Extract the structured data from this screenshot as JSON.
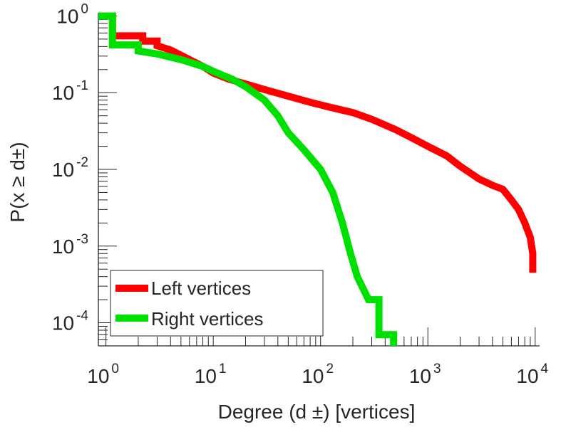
{
  "chart_data": {
    "type": "line",
    "title": "",
    "xlabel": "Degree (d ±) [vertices]",
    "ylabel": "P(x ≥ d±)",
    "xscale": "log",
    "yscale": "log",
    "xlim": [
      0.85,
      11000
    ],
    "ylim": [
      5e-05,
      1.1
    ],
    "grid": false,
    "legend_position": "bottom-left",
    "x_ticks": [
      {
        "base": "10",
        "exp": "0",
        "value": 1
      },
      {
        "base": "10",
        "exp": "1",
        "value": 10
      },
      {
        "base": "10",
        "exp": "2",
        "value": 100
      },
      {
        "base": "10",
        "exp": "3",
        "value": 1000
      },
      {
        "base": "10",
        "exp": "4",
        "value": 10000
      }
    ],
    "y_ticks": [
      {
        "base": "10",
        "exp": "0",
        "value": 1
      },
      {
        "base": "10",
        "exp": "-1",
        "value": 0.1
      },
      {
        "base": "10",
        "exp": "-2",
        "value": 0.01
      },
      {
        "base": "10",
        "exp": "-3",
        "value": 0.001
      },
      {
        "base": "10",
        "exp": "-4",
        "value": 0.0001
      }
    ],
    "series": [
      {
        "name": "Left vertices",
        "color": "#ff0000",
        "points": [
          [
            0.85,
            1.0
          ],
          [
            1.0,
            1.0
          ],
          [
            1.15,
            1.0
          ],
          [
            1.15,
            0.55
          ],
          [
            2.2,
            0.55
          ],
          [
            2.2,
            0.47
          ],
          [
            3.0,
            0.47
          ],
          [
            3.0,
            0.41
          ],
          [
            4.0,
            0.36
          ],
          [
            6.0,
            0.27
          ],
          [
            8.0,
            0.22
          ],
          [
            10,
            0.18
          ],
          [
            14,
            0.15
          ],
          [
            20,
            0.13
          ],
          [
            30,
            0.11
          ],
          [
            50,
            0.09
          ],
          [
            80,
            0.075
          ],
          [
            120,
            0.065
          ],
          [
            200,
            0.055
          ],
          [
            300,
            0.045
          ],
          [
            500,
            0.033
          ],
          [
            700,
            0.026
          ],
          [
            1000,
            0.02
          ],
          [
            1500,
            0.015
          ],
          [
            2000,
            0.011
          ],
          [
            3000,
            0.0075
          ],
          [
            4000,
            0.0062
          ],
          [
            5000,
            0.0055
          ],
          [
            6000,
            0.004
          ],
          [
            7000,
            0.003
          ],
          [
            8000,
            0.002
          ],
          [
            9000,
            0.0013
          ],
          [
            9500,
            0.0008
          ],
          [
            9500,
            0.00045
          ]
        ]
      },
      {
        "name": "Right vertices",
        "color": "#00e000",
        "points": [
          [
            0.85,
            1.0
          ],
          [
            1.0,
            1.0
          ],
          [
            1.15,
            1.0
          ],
          [
            1.15,
            0.42
          ],
          [
            2.0,
            0.42
          ],
          [
            2.0,
            0.35
          ],
          [
            3.0,
            0.32
          ],
          [
            5.0,
            0.27
          ],
          [
            8.0,
            0.22
          ],
          [
            10,
            0.19
          ],
          [
            15,
            0.15
          ],
          [
            20,
            0.12
          ],
          [
            30,
            0.08
          ],
          [
            40,
            0.05
          ],
          [
            50,
            0.03
          ],
          [
            70,
            0.018
          ],
          [
            100,
            0.01
          ],
          [
            130,
            0.005
          ],
          [
            160,
            0.002
          ],
          [
            190,
            0.0008
          ],
          [
            220,
            0.0004
          ],
          [
            280,
            0.0002
          ],
          [
            350,
            0.0002
          ],
          [
            350,
            7e-05
          ],
          [
            480,
            7e-05
          ],
          [
            480,
            5e-05
          ]
        ]
      }
    ]
  }
}
